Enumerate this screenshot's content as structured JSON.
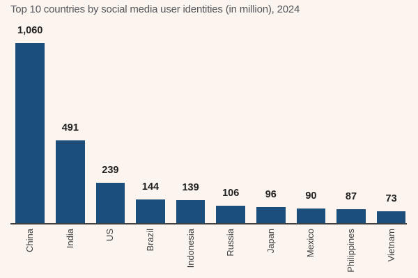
{
  "colors": {
    "background": "#fbf4ef",
    "bar": "#1b4e7a",
    "axis": "#404040",
    "title_text": "#54555a",
    "value_label": "#212121",
    "category_label": "#404040"
  },
  "chart_data": {
    "type": "bar",
    "title": "Top 10 countries by social media user identities (in million), 2024",
    "unit": "million",
    "year": "2024",
    "categories": [
      "China",
      "India",
      "US",
      "Brazil",
      "Indonesia",
      "Russia",
      "Japan",
      "Mexico",
      "Philippines",
      "Vietnam"
    ],
    "values": [
      1060,
      491,
      239,
      144,
      139,
      106,
      96,
      90,
      87,
      73
    ],
    "value_labels": [
      "1,060",
      "491",
      "239",
      "144",
      "139",
      "106",
      "96",
      "90",
      "87",
      "73"
    ],
    "xlabel": "",
    "ylabel": "",
    "ylim": [
      0,
      1100
    ],
    "grid": false,
    "legend": "none",
    "orientation": "vertical-bars",
    "category_label_rotation_deg": -90,
    "value_labels_position": "above-bars"
  }
}
